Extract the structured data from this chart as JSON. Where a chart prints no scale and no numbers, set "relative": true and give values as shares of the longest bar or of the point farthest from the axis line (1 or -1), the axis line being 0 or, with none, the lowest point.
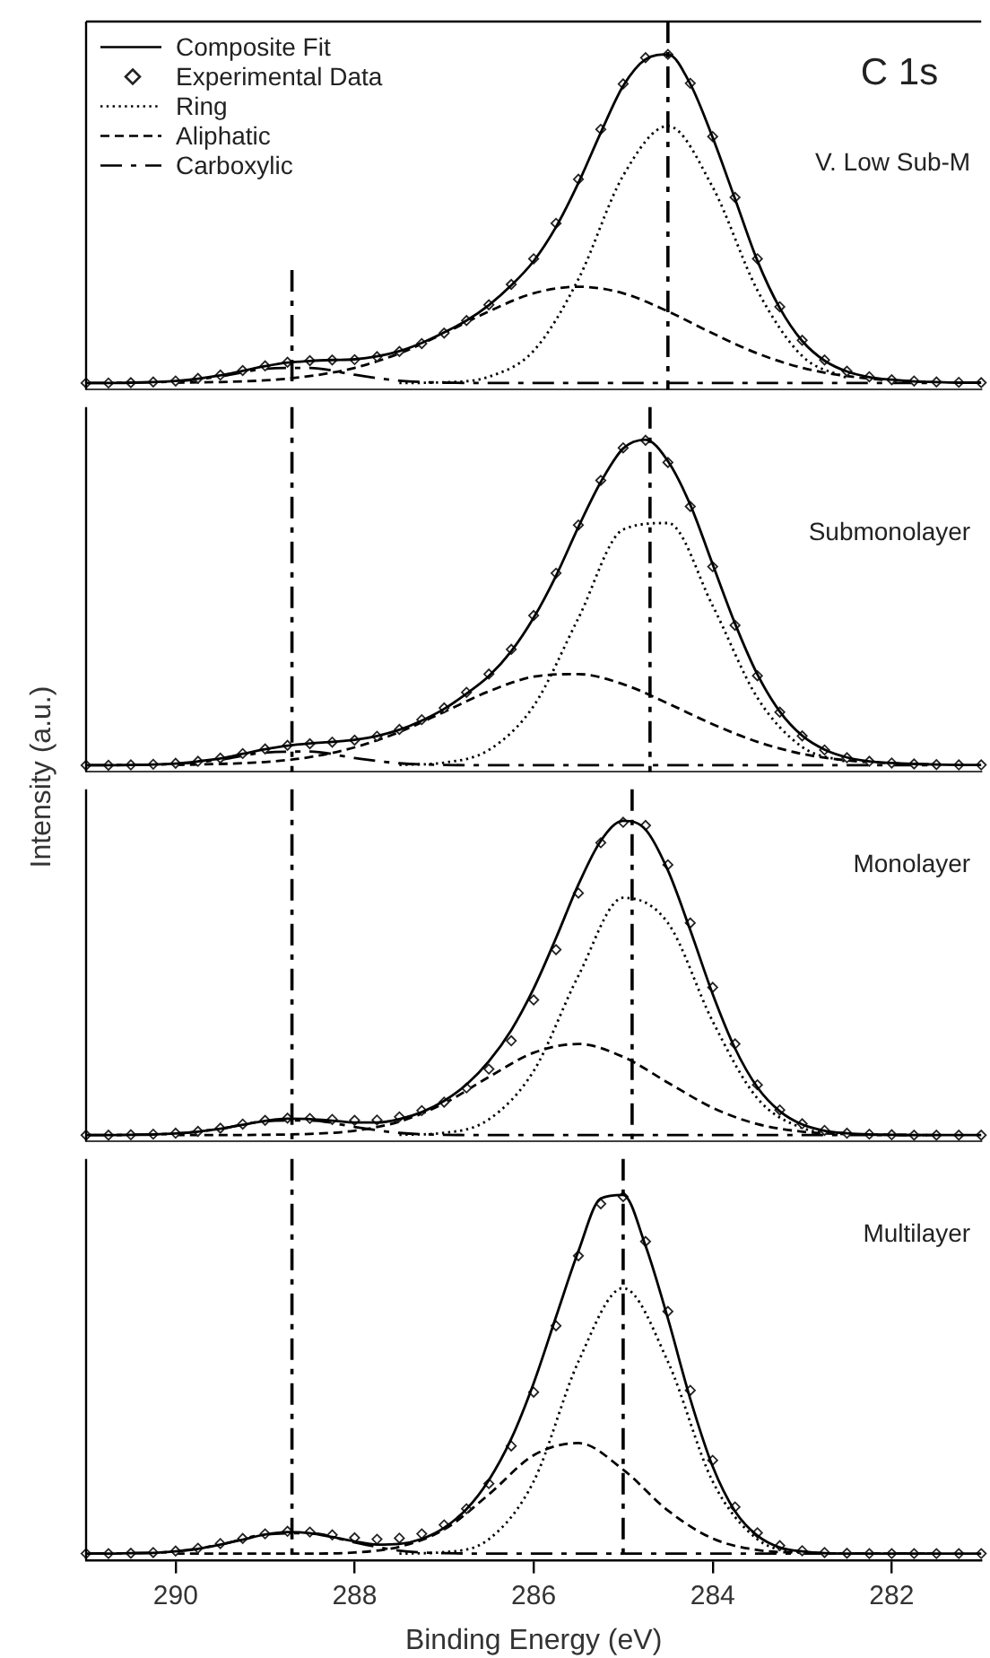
{
  "chart_data": [
    {
      "type": "line",
      "title": "C 1s",
      "annotations": [
        "V. Low Sub-M"
      ],
      "legend": "top left",
      "tick_labels": false,
      "relative": true,
      "xlim": [
        291,
        281
      ],
      "x": [
        291,
        290.75,
        290.5,
        290.25,
        290,
        289.75,
        289.5,
        289.25,
        289,
        288.75,
        288.5,
        288.25,
        288,
        287.75,
        287.5,
        287.25,
        287,
        286.75,
        286.5,
        286.25,
        286,
        285.75,
        285.5,
        285.25,
        285,
        284.75,
        284.5,
        284.25,
        284,
        283.75,
        283.5,
        283.25,
        283,
        282.75,
        282.5,
        282.25,
        282,
        281.75,
        281.5,
        281.25,
        281
      ],
      "ref_lines": [
        {
          "axis": "x",
          "value": 288.7,
          "color": "#000000",
          "line_style": "dashdot"
        },
        {
          "axis": "x",
          "value": 284.5,
          "color": "#000000",
          "line_style": "dashdot"
        }
      ],
      "series": [
        {
          "name": "Composite Fit",
          "type": "line",
          "line_style": "solid",
          "color": "#000000",
          "values": [
            0,
            0,
            0.001,
            0.003,
            0.006,
            0.013,
            0.023,
            0.037,
            0.051,
            0.062,
            0.067,
            0.07,
            0.072,
            0.081,
            0.097,
            0.122,
            0.154,
            0.19,
            0.237,
            0.297,
            0.371,
            0.475,
            0.609,
            0.762,
            0.904,
            0.985,
            1.0,
            0.91,
            0.747,
            0.56,
            0.372,
            0.228,
            0.128,
            0.068,
            0.035,
            0.018,
            0.01,
            0.005,
            0.003,
            0.001,
            0.001
          ]
        },
        {
          "name": "Experimental Data",
          "type": "scatter",
          "marker": "diamond",
          "color": "#222222",
          "values": [
            0,
            0,
            0.001,
            0.003,
            0.006,
            0.014,
            0.024,
            0.038,
            0.052,
            0.063,
            0.068,
            0.07,
            0.071,
            0.08,
            0.096,
            0.12,
            0.152,
            0.19,
            0.238,
            0.3,
            0.378,
            0.486,
            0.62,
            0.772,
            0.91,
            0.99,
            1.0,
            0.912,
            0.75,
            0.565,
            0.378,
            0.232,
            0.13,
            0.07,
            0.036,
            0.019,
            0.01,
            0.006,
            0.003,
            0.002,
            0.001
          ]
        },
        {
          "name": "Ring",
          "type": "line",
          "line_style": "dotted",
          "color": "#000000",
          "x": [
            287.5,
            287,
            286.5,
            286,
            285.5,
            285,
            284.5,
            284,
            283.5,
            283,
            282.5
          ],
          "values": [
            0,
            0.002,
            0.019,
            0.098,
            0.316,
            0.631,
            0.782,
            0.596,
            0.282,
            0.082,
            0.015
          ]
        },
        {
          "name": "Aliphatic",
          "type": "line",
          "line_style": "dashed",
          "color": "#000000",
          "x": [
            290,
            289.5,
            289,
            288.5,
            288,
            287.5,
            287,
            286.5,
            286,
            285.5,
            285,
            284.5,
            284,
            283.5,
            283,
            282.5,
            282,
            281.5
          ],
          "values": [
            0.001,
            0.003,
            0.008,
            0.021,
            0.046,
            0.09,
            0.151,
            0.218,
            0.273,
            0.293,
            0.273,
            0.218,
            0.151,
            0.09,
            0.046,
            0.021,
            0.008,
            0.003
          ]
        },
        {
          "name": "Carboxylic",
          "type": "line",
          "line_style": "dashdot",
          "color": "#000000",
          "x": [
            291,
            290.5,
            290,
            289.5,
            289,
            288.5,
            288,
            287.5,
            287,
            286.5,
            286,
            285.5,
            285,
            284.5,
            284,
            283.5,
            283,
            282.5,
            282,
            281.5
          ],
          "values": [
            0,
            0.001,
            0.005,
            0.02,
            0.043,
            0.046,
            0.025,
            0.007,
            0.001,
            0,
            0,
            0,
            0,
            0,
            0,
            0,
            0,
            0,
            0,
            0
          ]
        }
      ]
    },
    {
      "type": "line",
      "ylabel": "Intensity (a.u.)",
      "annotations": [
        "Submonolayer"
      ],
      "tick_labels": false,
      "relative": true,
      "xlim": [
        291,
        281
      ],
      "x": [
        291,
        290.75,
        290.5,
        290.25,
        290,
        289.75,
        289.5,
        289.25,
        289,
        288.75,
        288.5,
        288.25,
        288,
        287.75,
        287.5,
        287.25,
        287,
        286.75,
        286.5,
        286.25,
        286,
        285.75,
        285.5,
        285.25,
        285,
        284.75,
        284.5,
        284.25,
        284,
        283.75,
        283.5,
        283.25,
        283,
        282.75,
        282.5,
        282.25,
        282,
        281.75,
        281.5,
        281.25,
        281
      ],
      "ref_lines": [
        {
          "axis": "x",
          "value": 288.7,
          "color": "#000000",
          "line_style": "dashdot"
        },
        {
          "axis": "x",
          "value": 284.7,
          "color": "#000000",
          "line_style": "dashdot"
        }
      ],
      "series": [
        {
          "type": "line",
          "line_style": "solid",
          "color": "#000000",
          "values": [
            0,
            0,
            0.001,
            0.002,
            0.005,
            0.012,
            0.021,
            0.035,
            0.049,
            0.06,
            0.067,
            0.072,
            0.078,
            0.09,
            0.109,
            0.137,
            0.173,
            0.22,
            0.274,
            0.35,
            0.453,
            0.582,
            0.732,
            0.87,
            0.973,
            1.0,
            0.934,
            0.8,
            0.617,
            0.435,
            0.279,
            0.165,
            0.091,
            0.048,
            0.024,
            0.012,
            0.007,
            0.004,
            0.002,
            0.001,
            0.001
          ]
        },
        {
          "type": "scatter",
          "marker": "diamond",
          "color": "#222222",
          "values": [
            0,
            0,
            0.001,
            0.003,
            0.006,
            0.012,
            0.022,
            0.036,
            0.05,
            0.061,
            0.066,
            0.071,
            0.077,
            0.089,
            0.11,
            0.14,
            0.176,
            0.224,
            0.28,
            0.356,
            0.46,
            0.59,
            0.738,
            0.875,
            0.975,
            0.998,
            0.93,
            0.795,
            0.61,
            0.43,
            0.275,
            0.163,
            0.09,
            0.047,
            0.023,
            0.012,
            0.007,
            0.004,
            0.002,
            0.001,
            0.001
          ]
        },
        {
          "type": "line",
          "line_style": "dotted",
          "color": "#000000",
          "x": [
            287.5,
            287,
            286.5,
            286,
            285.5,
            285,
            284.5,
            284,
            283.5,
            283,
            282.5
          ],
          "values": [
            0.001,
            0.008,
            0.047,
            0.182,
            0.452,
            0.724,
            0.744,
            0.49,
            0.207,
            0.056,
            0.01
          ]
        },
        {
          "type": "line",
          "line_style": "dashed",
          "color": "#000000",
          "x": [
            290,
            289.5,
            289,
            288.5,
            288,
            287.5,
            287,
            286.5,
            286,
            285.5,
            285,
            284.5,
            284,
            283.5,
            283,
            282.5,
            282,
            281.5
          ],
          "values": [
            0.001,
            0.004,
            0.01,
            0.025,
            0.055,
            0.102,
            0.164,
            0.227,
            0.272,
            0.28,
            0.249,
            0.19,
            0.126,
            0.072,
            0.035,
            0.015,
            0.006,
            0.002
          ]
        },
        {
          "type": "line",
          "line_style": "dashdot",
          "color": "#000000",
          "x": [
            291,
            290.5,
            290,
            289.5,
            289,
            288.5,
            288,
            287.5,
            287,
            286.5,
            286,
            285.5,
            285,
            284.5,
            284,
            283.5,
            283,
            282.5,
            282,
            281.5
          ],
          "values": [
            0,
            0.001,
            0.004,
            0.017,
            0.039,
            0.042,
            0.022,
            0.006,
            0.001,
            0,
            0,
            0,
            0,
            0,
            0,
            0,
            0,
            0,
            0,
            0
          ]
        }
      ]
    },
    {
      "type": "line",
      "annotations": [
        "Monolayer"
      ],
      "tick_labels": false,
      "relative": true,
      "xlim": [
        291,
        281
      ],
      "x": [
        291,
        290.75,
        290.5,
        290.25,
        290,
        289.75,
        289.5,
        289.25,
        289,
        288.75,
        288.5,
        288.25,
        288,
        287.75,
        287.5,
        287.25,
        287,
        286.75,
        286.5,
        286.25,
        286,
        285.75,
        285.5,
        285.25,
        285,
        284.75,
        284.5,
        284.25,
        284,
        283.75,
        283.5,
        283.25,
        283,
        282.75,
        282.5,
        282.25,
        282,
        281.75,
        281.5,
        281.25,
        281
      ],
      "ref_lines": [
        {
          "axis": "x",
          "value": 288.7,
          "color": "#000000",
          "line_style": "dashdot"
        },
        {
          "axis": "x",
          "value": 284.9,
          "color": "#000000",
          "line_style": "dashdot"
        }
      ],
      "series": [
        {
          "type": "line",
          "line_style": "solid",
          "color": "#000000",
          "values": [
            0,
            0,
            0.001,
            0.002,
            0.005,
            0.011,
            0.02,
            0.033,
            0.045,
            0.052,
            0.051,
            0.046,
            0.04,
            0.04,
            0.051,
            0.073,
            0.109,
            0.161,
            0.235,
            0.334,
            0.466,
            0.627,
            0.797,
            0.936,
            1.0,
            0.972,
            0.842,
            0.652,
            0.449,
            0.276,
            0.152,
            0.076,
            0.034,
            0.014,
            0.006,
            0.002,
            0.001,
            0,
            0,
            0,
            0
          ]
        },
        {
          "type": "scatter",
          "marker": "diamond",
          "color": "#222222",
          "values": [
            0,
            0,
            0.001,
            0.003,
            0.006,
            0.012,
            0.022,
            0.035,
            0.047,
            0.054,
            0.053,
            0.05,
            0.047,
            0.048,
            0.058,
            0.078,
            0.105,
            0.15,
            0.21,
            0.3,
            0.43,
            0.59,
            0.77,
            0.93,
            0.995,
            0.985,
            0.86,
            0.675,
            0.47,
            0.29,
            0.16,
            0.08,
            0.036,
            0.015,
            0.006,
            0.003,
            0.001,
            0,
            0,
            0,
            0
          ]
        },
        {
          "type": "line",
          "line_style": "dotted",
          "color": "#000000",
          "x": [
            287.5,
            287,
            286.5,
            286,
            285.5,
            285,
            284.5,
            284,
            283.5,
            283,
            282.5
          ],
          "values": [
            0.001,
            0.007,
            0.05,
            0.204,
            0.507,
            0.755,
            0.675,
            0.362,
            0.117,
            0.023,
            0.003
          ]
        },
        {
          "type": "line",
          "line_style": "dashed",
          "color": "#000000",
          "x": [
            290,
            289.5,
            289,
            288.5,
            288,
            287.5,
            287,
            286.5,
            286,
            285.5,
            285,
            284.5,
            284,
            283.5,
            283,
            282.5,
            282,
            281.5
          ],
          "values": [
            0,
            0,
            0.001,
            0.004,
            0.014,
            0.043,
            0.101,
            0.185,
            0.262,
            0.29,
            0.249,
            0.167,
            0.087,
            0.035,
            0.011,
            0.003,
            0.001,
            0
          ]
        },
        {
          "type": "line",
          "line_style": "dashdot",
          "color": "#000000",
          "x": [
            291,
            290.5,
            290,
            289.5,
            289,
            288.5,
            288,
            287.5,
            287,
            286.5,
            286,
            285.5,
            285,
            284.5,
            284,
            283.5,
            283,
            282.5,
            282,
            281.5
          ],
          "values": [
            0,
            0.001,
            0.005,
            0.02,
            0.044,
            0.047,
            0.026,
            0.007,
            0.001,
            0,
            0,
            0,
            0,
            0,
            0,
            0,
            0,
            0,
            0,
            0
          ]
        }
      ]
    },
    {
      "type": "line",
      "xlabel": "Binding Energy (eV)",
      "annotations": [
        "Multilayer"
      ],
      "tick_labels": "x",
      "relative": true,
      "xlim": [
        291,
        281
      ],
      "xticks": [
        290,
        288,
        286,
        284,
        282
      ],
      "x": [
        291,
        290.75,
        290.5,
        290.25,
        290,
        289.75,
        289.5,
        289.25,
        289,
        288.75,
        288.5,
        288.25,
        288,
        287.75,
        287.5,
        287.25,
        287,
        286.75,
        286.5,
        286.25,
        286,
        285.75,
        285.5,
        285.25,
        285,
        284.75,
        284.5,
        284.25,
        284,
        283.75,
        283.5,
        283.25,
        283,
        282.75,
        282.5,
        282.25,
        282,
        281.75,
        281.5,
        281.25,
        281
      ],
      "ref_lines": [
        {
          "axis": "x",
          "value": 288.7,
          "color": "#000000",
          "line_style": "dashdot"
        },
        {
          "axis": "x",
          "value": 285.0,
          "color": "#000000",
          "line_style": "dashdot"
        }
      ],
      "series": [
        {
          "type": "line",
          "line_style": "solid",
          "color": "#000000",
          "values": [
            0,
            0,
            0.001,
            0.002,
            0.006,
            0.013,
            0.025,
            0.039,
            0.053,
            0.06,
            0.057,
            0.046,
            0.034,
            0.025,
            0.027,
            0.041,
            0.072,
            0.124,
            0.205,
            0.32,
            0.475,
            0.66,
            0.843,
            0.99,
            1.0,
            0.858,
            0.655,
            0.431,
            0.243,
            0.118,
            0.05,
            0.017,
            0.006,
            0.001,
            0,
            0,
            0,
            0,
            0,
            0,
            0
          ]
        },
        {
          "type": "scatter",
          "marker": "diamond",
          "color": "#222222",
          "values": [
            0,
            0,
            0.001,
            0.003,
            0.007,
            0.015,
            0.028,
            0.042,
            0.055,
            0.062,
            0.06,
            0.052,
            0.044,
            0.04,
            0.043,
            0.055,
            0.08,
            0.125,
            0.195,
            0.3,
            0.45,
            0.635,
            0.83,
            0.975,
            0.995,
            0.87,
            0.675,
            0.455,
            0.26,
            0.13,
            0.058,
            0.022,
            0.008,
            0.003,
            0.001,
            0,
            0,
            0,
            0,
            0,
            0
          ]
        },
        {
          "type": "line",
          "line_style": "dotted",
          "color": "#000000",
          "x": [
            287.5,
            287,
            286.5,
            286,
            285.5,
            285,
            284.5,
            284,
            283.5,
            283,
            282.5
          ],
          "values": [
            0,
            0.004,
            0.04,
            0.201,
            0.535,
            0.74,
            0.535,
            0.201,
            0.04,
            0.004,
            0
          ]
        },
        {
          "type": "line",
          "line_style": "dashed",
          "color": "#000000",
          "x": [
            290,
            289.5,
            289,
            288.5,
            288,
            287.5,
            287,
            286.5,
            286,
            285.5,
            285,
            284.5,
            284,
            283.5,
            283,
            282.5,
            282,
            281.5
          ],
          "values": [
            0,
            0,
            0,
            0,
            0.003,
            0.019,
            0.067,
            0.165,
            0.274,
            0.308,
            0.234,
            0.12,
            0.042,
            0.01,
            0.002,
            0,
            0,
            0
          ]
        },
        {
          "type": "line",
          "line_style": "dashdot",
          "color": "#000000",
          "x": [
            291,
            290.5,
            290,
            289.5,
            289,
            288.5,
            288,
            287.5,
            287,
            286.5,
            286,
            285.5,
            285,
            284.5,
            284,
            283.5,
            283,
            282.5,
            282,
            281.5
          ],
          "values": [
            0,
            0.001,
            0.006,
            0.025,
            0.053,
            0.057,
            0.031,
            0.008,
            0.001,
            0,
            0,
            0,
            0,
            0,
            0,
            0,
            0,
            0,
            0,
            0
          ]
        }
      ]
    }
  ]
}
